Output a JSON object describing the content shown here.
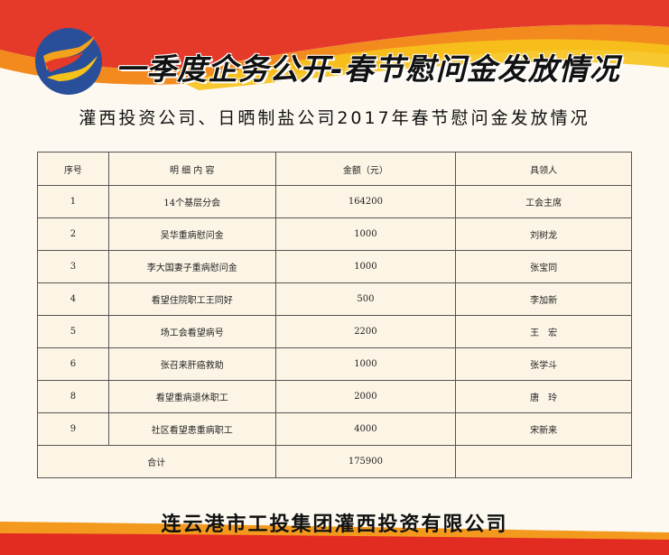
{
  "header": {
    "title": "一季度企务公开-春节慰问金发放情况",
    "subtitle": "灌西投资公司、日晒制盐公司2017年春节慰问金发放情况"
  },
  "colors": {
    "banner_red": "#e53a2a",
    "banner_orange": "#f28a1e",
    "banner_yellow": "#f7c21b",
    "logo_blue": "#2a4f9a",
    "background": "#fdf9f1"
  },
  "table": {
    "columns": [
      "序号",
      "明 细 内 容",
      "金额（元）",
      "具领人"
    ],
    "rows": [
      {
        "no": "1",
        "item": "14个基层分会",
        "amount": "164200",
        "recipient": "工会主席"
      },
      {
        "no": "2",
        "item": "吴华重病慰问金",
        "amount": "1000",
        "recipient": "刘树龙"
      },
      {
        "no": "3",
        "item": "李大国妻子重病慰问金",
        "amount": "1000",
        "recipient": "张宝同"
      },
      {
        "no": "4",
        "item": "看望住院职工王同好",
        "amount": "500",
        "recipient": "李加新"
      },
      {
        "no": "5",
        "item": "场工会看望病号",
        "amount": "2200",
        "recipient": "王　宏"
      },
      {
        "no": "6",
        "item": "张召来肝癌救助",
        "amount": "1000",
        "recipient": "张学斗"
      },
      {
        "no": "8",
        "item": "看望重病退休职工",
        "amount": "2000",
        "recipient": "唐　玲"
      },
      {
        "no": "9",
        "item": "社区看望患重病职工",
        "amount": "4000",
        "recipient": "宋新来"
      }
    ],
    "total": {
      "label": "合计",
      "amount": "175900",
      "recipient": ""
    }
  },
  "footer": {
    "company": "连云港市工投集团灌西投资有限公司"
  }
}
